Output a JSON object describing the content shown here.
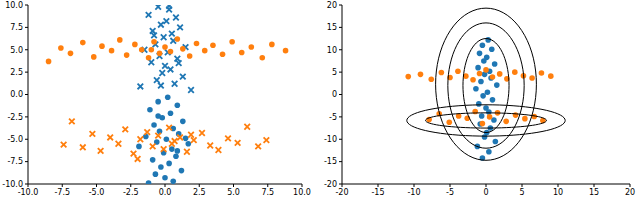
{
  "chart_data": [
    {
      "type": "scatter",
      "xlim": [
        -10,
        10
      ],
      "ylim": [
        -10,
        10
      ],
      "xticks": [
        {
          "value": -10,
          "label": "-10.0"
        },
        -7.5,
        {
          "value": -5,
          "label": "-5.0"
        },
        -2.5,
        {
          "value": 0,
          "label": "0.0"
        },
        2.5,
        {
          "value": 5,
          "label": "5.0"
        },
        7.5,
        {
          "value": 10,
          "label": "10.0"
        }
      ],
      "yticks": [
        {
          "value": -10,
          "label": "-10.0"
        },
        -7.5,
        {
          "value": -5,
          "label": "-5.0"
        },
        -2.5,
        {
          "value": 0,
          "label": "0.0"
        },
        2.5,
        {
          "value": 5,
          "label": "5.0"
        },
        7.5,
        {
          "value": 10,
          "label": "10.0"
        }
      ],
      "series": [
        {
          "color": "#1f77b4",
          "marker": "x",
          "x": [
            -0.5,
            0.3,
            -1.2,
            0.8,
            0.1,
            -0.3,
            1.1,
            -0.9,
            0.5,
            -0.1,
            0.6,
            -0.7,
            1.5,
            -1.5,
            0.2,
            -0.4,
            0.9,
            -1.0,
            0.0,
            0.4,
            -0.2,
            1.3,
            -0.6,
            0.7,
            -1.8,
            1.9,
            0.3,
            -0.8,
            1.0,
            -0.3
          ],
          "values": [
            9.8,
            9.5,
            8.9,
            8.6,
            8.2,
            7.8,
            7.5,
            7.1,
            6.8,
            6.4,
            6.0,
            5.6,
            5.3,
            5.0,
            4.7,
            4.3,
            4.0,
            3.6,
            3.2,
            2.8,
            2.4,
            2.0,
            1.6,
            1.2,
            0.9,
            0.5,
            9.9,
            6.6,
            3.5,
            1.0
          ]
        },
        {
          "color": "#1f77b4",
          "marker": "o",
          "x": [
            0.2,
            -0.5,
            0.9,
            -1.1,
            0.4,
            -0.2,
            1.3,
            -0.8,
            0.6,
            -0.4,
            1.0,
            -1.4,
            0.1,
            -0.6,
            1.7,
            -1.9,
            0.5,
            -0.1,
            0.8,
            -0.9,
            0.3,
            -0.3,
            1.2,
            -0.7,
            0.0,
            0.6,
            -1.2,
            1.5,
            -0.5,
            0.9
          ],
          "values": [
            -0.3,
            -0.8,
            -1.2,
            -1.7,
            -2.1,
            -2.6,
            -3.0,
            -3.4,
            -3.8,
            -4.1,
            -4.4,
            -4.7,
            -5.0,
            -5.3,
            -5.5,
            -5.8,
            -6.1,
            -6.5,
            -6.9,
            -7.3,
            -7.7,
            -8.1,
            -8.5,
            -8.9,
            -9.3,
            -9.7,
            -9.9,
            -4.9,
            -2.4,
            -6.3
          ]
        },
        {
          "color": "#ff7f0e",
          "marker": "o",
          "x": [
            -8.5,
            -7.6,
            -6.9,
            -6.0,
            -5.2,
            -4.6,
            -3.9,
            -3.3,
            -2.8,
            -2.2,
            -1.7,
            -1.2,
            -0.8,
            -0.4,
            0.0,
            0.4,
            0.9,
            1.3,
            1.8,
            2.3,
            2.9,
            3.5,
            4.2,
            4.9,
            5.6,
            6.3,
            7.1,
            7.8,
            8.8,
            -1.0
          ],
          "values": [
            3.7,
            5.2,
            4.6,
            5.8,
            4.2,
            5.4,
            4.9,
            6.1,
            4.4,
            5.6,
            5.0,
            4.1,
            5.9,
            4.6,
            5.3,
            4.8,
            6.2,
            5.1,
            4.3,
            5.7,
            4.9,
            5.5,
            4.5,
            5.9,
            4.7,
            5.3,
            4.1,
            5.6,
            4.9,
            5.0
          ]
        },
        {
          "color": "#ff7f0e",
          "marker": "x",
          "x": [
            -7.4,
            -6.8,
            -6.0,
            -5.3,
            -4.7,
            -4.0,
            -3.4,
            -2.9,
            -2.3,
            -1.8,
            -1.3,
            -0.9,
            -0.5,
            -0.1,
            0.3,
            0.7,
            1.1,
            1.6,
            2.1,
            2.7,
            3.3,
            3.9,
            4.6,
            5.3,
            6.0,
            6.8,
            7.4,
            -2.0,
            0.5,
            1.9
          ],
          "values": [
            -5.6,
            -3.0,
            -5.9,
            -4.4,
            -6.3,
            -4.8,
            -5.5,
            -3.9,
            -6.6,
            -5.0,
            -4.2,
            -5.8,
            -4.6,
            -6.1,
            -3.7,
            -5.2,
            -4.8,
            -6.4,
            -5.1,
            -4.3,
            -5.7,
            -6.2,
            -4.9,
            -5.4,
            -3.6,
            -5.8,
            -5.1,
            -7.2,
            -5.5,
            -4.5
          ]
        }
      ]
    },
    {
      "type": "scatter",
      "xlim": [
        -20,
        20
      ],
      "ylim": [
        -20,
        20
      ],
      "xticks": [
        -20,
        -15,
        -10,
        -5,
        0,
        5,
        10,
        15,
        20
      ],
      "yticks": [
        -20,
        -15,
        -10,
        -5,
        0,
        5,
        10,
        15,
        20
      ],
      "series": [
        {
          "color": "#1f77b4",
          "marker": "o",
          "x": [
            0.3,
            -0.5,
            0.8,
            -0.9,
            0.1,
            -0.3,
            1.2,
            -1.1,
            0.5,
            -0.2,
            0.7,
            -0.7,
            1.5,
            -1.4,
            0.2,
            -0.4,
            0.9,
            -1.0,
            0.0,
            0.4,
            -0.6,
            1.1,
            -0.8,
            0.6,
            0.1,
            -0.2,
            1.3,
            -1.2,
            0.4,
            -0.5
          ],
          "values": [
            12.2,
            11.0,
            10.1,
            9.2,
            8.3,
            7.5,
            6.8,
            6.0,
            5.2,
            4.5,
            3.7,
            2.9,
            2.1,
            1.3,
            0.5,
            -0.3,
            -1.2,
            -2.1,
            -3.0,
            -3.9,
            -4.8,
            -5.7,
            -6.6,
            -7.5,
            -8.5,
            -9.5,
            -10.5,
            -11.6,
            -12.8,
            -14.2
          ]
        },
        {
          "color": "#ff7f0e",
          "marker": "o",
          "x": [
            -10.8,
            -9.1,
            -7.6,
            -6.2,
            -5.0,
            -3.9,
            -2.8,
            -1.8,
            -0.9,
            0.0,
            0.9,
            1.9,
            2.9,
            4.0,
            5.2,
            6.4,
            7.7,
            9.0,
            -7.9,
            -6.5,
            -5.1,
            -3.8,
            -2.6,
            -1.5,
            -0.5,
            0.5,
            1.6,
            2.8,
            4.1,
            5.4,
            6.7,
            7.9
          ],
          "values": [
            4.0,
            4.5,
            3.4,
            4.9,
            3.8,
            5.2,
            4.1,
            3.3,
            4.7,
            5.5,
            3.9,
            4.6,
            3.5,
            5.0,
            4.2,
            3.7,
            4.8,
            4.1,
            -5.6,
            -4.3,
            -6.2,
            -4.8,
            -5.3,
            -3.8,
            -6.5,
            -5.0,
            -4.1,
            -6.0,
            -4.6,
            -5.4,
            -4.9,
            -5.8
          ]
        }
      ],
      "ellipses": [
        {
          "center": [
            0,
            2
          ],
          "radii": [
            3.2,
            10.5
          ]
        },
        {
          "center": [
            0,
            2
          ],
          "radii": [
            5.3,
            14
          ]
        },
        {
          "center": [
            0,
            2.3
          ],
          "radii": [
            7,
            17
          ]
        },
        {
          "center": [
            0,
            -5.8
          ],
          "radii": [
            8.4,
            1.7
          ]
        },
        {
          "center": [
            0,
            -5.8
          ],
          "radii": [
            11,
            3.5
          ]
        }
      ]
    }
  ]
}
